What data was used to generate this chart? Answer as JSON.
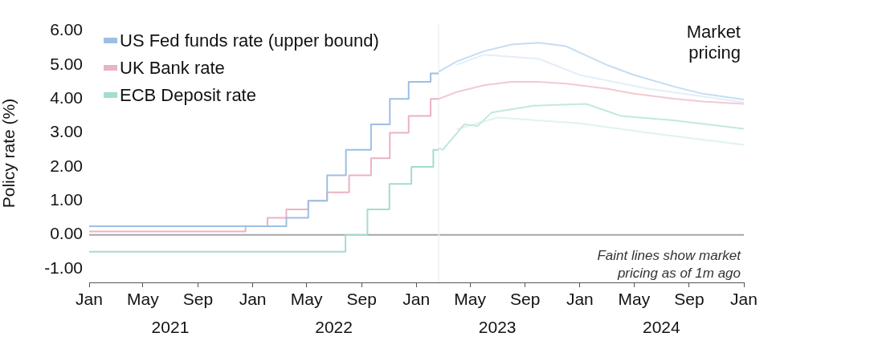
{
  "chart_data": {
    "type": "line",
    "ylabel": "Policy rate (%)",
    "xlim": [
      "2021-01-01",
      "2025-01-01"
    ],
    "xticks": [
      {
        "value": "2021-01",
        "label": "Jan"
      },
      {
        "value": "2021-05",
        "label": "May"
      },
      {
        "value": "2021-09",
        "label": "Sep"
      },
      {
        "value": "2022-01",
        "label": "Jan"
      },
      {
        "value": "2022-05",
        "label": "May"
      },
      {
        "value": "2022-09",
        "label": "Sep"
      },
      {
        "value": "2023-01",
        "label": "Jan"
      },
      {
        "value": "2023-05",
        "label": "May"
      },
      {
        "value": "2023-09",
        "label": "Sep"
      },
      {
        "value": "2024-01",
        "label": "Jan"
      },
      {
        "value": "2024-05",
        "label": "May"
      },
      {
        "value": "2024-09",
        "label": "Sep"
      },
      {
        "value": "2025-01",
        "label": "Jan"
      }
    ],
    "x2lim": [
      "2021-01-01",
      "2025-01-01"
    ],
    "x2ticks": [
      {
        "value": "2021-07",
        "label": "2021"
      },
      {
        "value": "2022-07",
        "label": "2022"
      },
      {
        "value": "2023-07",
        "label": "2023"
      },
      {
        "value": "2024-07",
        "label": "2024"
      }
    ],
    "ylim": [
      -1.4,
      6.2
    ],
    "yticks": [
      {
        "value": -1,
        "label": "-1.00"
      },
      {
        "value": 0,
        "label": "0.00"
      },
      {
        "value": 1,
        "label": "1.00"
      },
      {
        "value": 2,
        "label": "2.00"
      },
      {
        "value": 3,
        "label": "3.00"
      },
      {
        "value": 4,
        "label": "4.00"
      },
      {
        "value": 5,
        "label": "5.00"
      },
      {
        "value": 6,
        "label": "6.00"
      }
    ],
    "grid": false,
    "legend": "top left",
    "line_style": "solid",
    "marker": "none",
    "ref_lines": [
      {
        "axis": "y",
        "value": 0,
        "color": "#a6a6a6"
      },
      {
        "axis": "x",
        "value": "2023-02-20",
        "color": "#eef2f2"
      }
    ],
    "annotations": [
      "Market pricing",
      "Faint lines show market pricing as of 1m ago"
    ],
    "series": [
      {
        "name": "US Fed funds rate (upper bound)",
        "type": "step",
        "color": "#9dbfe3",
        "x": [
          "2021-01-01",
          "2022-03-17",
          "2022-05-05",
          "2022-06-16",
          "2022-07-28",
          "2022-09-22",
          "2022-11-03",
          "2022-12-15",
          "2023-02-02",
          "2023-02-20"
        ],
        "values": [
          0.25,
          0.5,
          1.0,
          1.75,
          2.5,
          3.25,
          4.0,
          4.5,
          4.75,
          4.75
        ]
      },
      {
        "name": "UK Bank rate",
        "type": "step",
        "color": "#eab3c0",
        "x": [
          "2021-01-01",
          "2021-12-16",
          "2022-02-03",
          "2022-03-17",
          "2022-05-05",
          "2022-06-16",
          "2022-08-04",
          "2022-09-22",
          "2022-11-03",
          "2022-12-15",
          "2023-02-02",
          "2023-02-20"
        ],
        "values": [
          0.1,
          0.25,
          0.5,
          0.75,
          1.0,
          1.25,
          1.75,
          2.25,
          3.0,
          3.5,
          4.0,
          4.0
        ]
      },
      {
        "name": "ECB Deposit rate",
        "type": "step",
        "color": "#a3dcd2",
        "x": [
          "2021-01-01",
          "2022-07-27",
          "2022-09-14",
          "2022-11-02",
          "2022-12-21",
          "2023-02-08",
          "2023-02-20"
        ],
        "values": [
          -0.5,
          0.0,
          0.75,
          1.5,
          2.0,
          2.5,
          2.5
        ]
      },
      {
        "type": "line",
        "color": "#c6dcf2",
        "x": [
          "2023-02-20",
          "2023-04",
          "2023-06",
          "2023-08",
          "2023-10",
          "2023-12",
          "2024-03",
          "2024-05",
          "2024-08",
          "2024-10",
          "2025-01"
        ],
        "values": [
          4.8,
          5.1,
          5.4,
          5.6,
          5.65,
          5.55,
          5.0,
          4.7,
          4.35,
          4.15,
          3.98
        ]
      },
      {
        "type": "line",
        "color": "#f2c9d2",
        "x": [
          "2023-02-20",
          "2023-04",
          "2023-06",
          "2023-08",
          "2023-10",
          "2023-12",
          "2024-03",
          "2024-05",
          "2024-08",
          "2024-10",
          "2025-01"
        ],
        "values": [
          4.0,
          4.2,
          4.4,
          4.5,
          4.5,
          4.45,
          4.3,
          4.15,
          4.0,
          3.92,
          3.85
        ]
      },
      {
        "type": "line",
        "color": "#c2e8e0",
        "x": [
          "2023-02-20",
          "2023-03",
          "2023-04-18",
          "2023-05-18",
          "2023-06-18",
          "2023-09-20",
          "2024-01-15",
          "2024-04",
          "2024-07-28",
          "2025-01"
        ],
        "values": [
          2.55,
          2.5,
          3.25,
          3.2,
          3.6,
          3.8,
          3.85,
          3.5,
          3.37,
          3.12
        ]
      },
      {
        "type": "line",
        "color": "#e3eef9",
        "x": [
          "2023-04",
          "2023-06",
          "2023-10",
          "2024-01",
          "2024-06",
          "2025-01"
        ],
        "values": [
          5.0,
          5.3,
          5.18,
          4.7,
          4.3,
          3.9
        ]
      },
      {
        "type": "line",
        "color": "#e0f3ef",
        "x": [
          "2023-04",
          "2023-07",
          "2024-01",
          "2024-06",
          "2025-01"
        ],
        "values": [
          3.1,
          3.45,
          3.28,
          3.0,
          2.65
        ]
      }
    ]
  }
}
